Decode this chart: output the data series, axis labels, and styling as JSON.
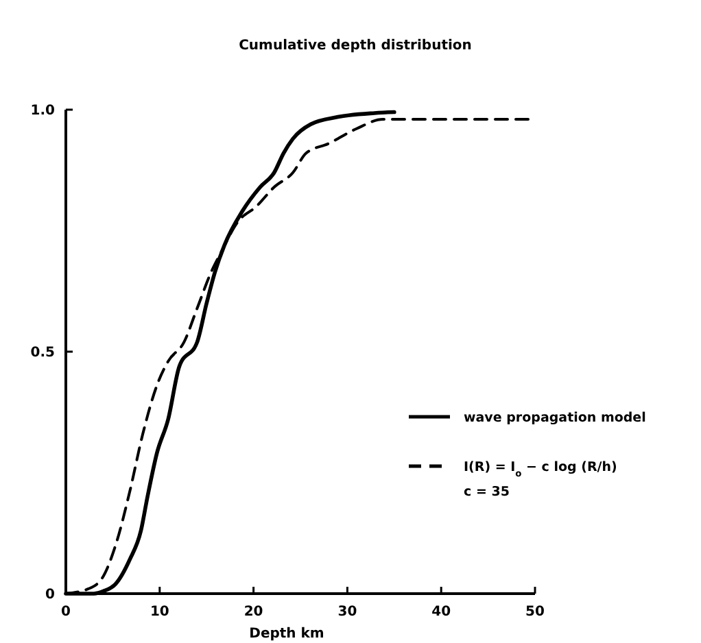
{
  "chart_data": {
    "type": "line",
    "title": "Cumulative depth distribution",
    "xlabel": "Depth km",
    "xlim": [
      0,
      50
    ],
    "ylim": [
      0,
      1
    ],
    "xticks": [
      0,
      10,
      20,
      30,
      40,
      50
    ],
    "yticks": [
      0,
      {
        "value": 0.5,
        "label": "0.5"
      },
      {
        "value": 1,
        "label": "1.0"
      }
    ],
    "legend": "right",
    "grid": false,
    "series": [
      {
        "name": "wave propagation model",
        "color": "#000000",
        "line_style": "solid",
        "x": [
          0,
          3,
          4,
          5.3,
          6.8,
          8,
          8.7,
          9.7,
          10.9,
          12.1,
          14,
          15,
          15.9,
          16.9,
          18.8,
          20.7,
          22.2,
          23.2,
          24.2,
          26.1,
          29,
          32.9,
          35
        ],
        "values": [
          0,
          0,
          0.005,
          0.02,
          0.07,
          0.13,
          0.2,
          0.29,
          0.36,
          0.47,
          0.52,
          0.6,
          0.665,
          0.72,
          0.79,
          0.84,
          0.87,
          0.91,
          0.94,
          0.97,
          0.985,
          0.993,
          0.995
        ]
      },
      {
        "name": "I(R) = I$_{o}$ − c log (R/h)",
        "color": "#000000",
        "line_style": "dashed",
        "x": [
          0,
          2.4,
          3.9,
          5.3,
          6.8,
          8.2,
          9.7,
          10.9,
          12.6,
          14,
          15.5,
          16.4,
          18.4,
          20.3,
          22.2,
          24.2,
          25.6,
          28,
          30.9,
          33.8,
          35.3,
          50
        ],
        "values": [
          0,
          0.01,
          0.033,
          0.1,
          0.21,
          0.33,
          0.43,
          0.48,
          0.52,
          0.59,
          0.665,
          0.7,
          0.77,
          0.8,
          0.84,
          0.87,
          0.91,
          0.93,
          0.96,
          0.98,
          0.98,
          0.98
        ]
      }
    ],
    "annotations": [
      "c = 35"
    ]
  }
}
